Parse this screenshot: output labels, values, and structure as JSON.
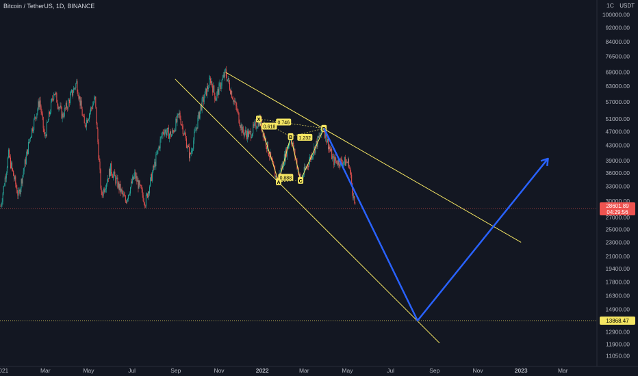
{
  "header": {
    "symbol_line": "Bitcoin / TetherUS, 1D, BINANCE",
    "currency": "USDT",
    "truncated_top": "1C"
  },
  "price_labels": {
    "current_price": "28601.89",
    "countdown": "04:29:56",
    "target_price": "13868.47"
  },
  "colors": {
    "background": "#131722",
    "up": "#26a69a",
    "down": "#ef5350",
    "trendline": "#f5e663",
    "projection": "#2962ff",
    "pattern": "#f5e663",
    "axis_text": "#b2b5be"
  },
  "chart_data": {
    "type": "candlestick",
    "title": "Bitcoin / TetherUS, 1D, BINANCE",
    "y_scale": "log",
    "ylim": [
      10500,
      110000
    ],
    "y_ticks": [
      100000,
      92000,
      84000,
      76500,
      69000,
      63000,
      57000,
      51000,
      47000,
      43000,
      39000,
      36000,
      33000,
      30000,
      27000,
      25000,
      23000,
      21000,
      19400,
      17800,
      16300,
      14900,
      13868.47,
      12900,
      11900,
      11050
    ],
    "x_tick_labels": [
      "021",
      "Mar",
      "May",
      "Jul",
      "Sep",
      "Nov",
      "2022",
      "Mar",
      "May",
      "Jul",
      "Sep",
      "Nov",
      "2023",
      "Mar"
    ],
    "x_tick_dates": [
      "2021-01-01",
      "2021-03-01",
      "2021-05-01",
      "2021-07-01",
      "2021-09-01",
      "2021-11-01",
      "2022-01-01",
      "2022-03-01",
      "2022-05-01",
      "2022-07-01",
      "2022-09-01",
      "2022-11-01",
      "2023-01-01",
      "2023-03-01"
    ],
    "price_path": [
      [
        "2020-12-28",
        29000
      ],
      [
        "2021-01-08",
        40500
      ],
      [
        "2021-01-22",
        31000
      ],
      [
        "2021-02-08",
        46000
      ],
      [
        "2021-02-21",
        57500
      ],
      [
        "2021-02-28",
        45000
      ],
      [
        "2021-03-13",
        61000
      ],
      [
        "2021-03-25",
        52000
      ],
      [
        "2021-04-14",
        64500
      ],
      [
        "2021-04-25",
        49000
      ],
      [
        "2021-05-10",
        58000
      ],
      [
        "2021-05-19",
        31000
      ],
      [
        "2021-06-01",
        37000
      ],
      [
        "2021-06-22",
        30000
      ],
      [
        "2021-07-05",
        35500
      ],
      [
        "2021-07-20",
        29800
      ],
      [
        "2021-08-14",
        47500
      ],
      [
        "2021-08-26",
        46000
      ],
      [
        "2021-09-06",
        52500
      ],
      [
        "2021-09-21",
        40000
      ],
      [
        "2021-10-06",
        55000
      ],
      [
        "2021-10-20",
        66000
      ],
      [
        "2021-10-27",
        58500
      ],
      [
        "2021-11-10",
        69000
      ],
      [
        "2021-11-26",
        54000
      ],
      [
        "2021-12-04",
        47000
      ],
      [
        "2021-12-14",
        46000
      ],
      [
        "2021-12-28",
        50800
      ],
      [
        "2022-01-22",
        34000
      ],
      [
        "2022-02-10",
        45500
      ],
      [
        "2022-02-24",
        34300
      ],
      [
        "2022-03-28",
        48200
      ],
      [
        "2022-04-11",
        39000
      ],
      [
        "2022-05-03",
        38500
      ],
      [
        "2022-05-12",
        28601.89
      ]
    ],
    "current_price": 28601.89,
    "target_line": 13868.47,
    "channel_lines": [
      {
        "from": [
          "2021-11-10",
          69000
        ],
        "to": [
          "2023-01-01",
          23000
        ]
      },
      {
        "from": [
          "2021-08-31",
          66000
        ],
        "to": [
          "2022-09-08",
          12000
        ]
      }
    ],
    "pattern": {
      "points": [
        {
          "label": "X",
          "date": "2021-12-27",
          "price": 51000
        },
        {
          "label": "A",
          "date": "2022-01-24",
          "price": 34000
        },
        {
          "label": "B",
          "date": "2022-02-10",
          "price": 45500
        },
        {
          "label": "C",
          "date": "2022-02-24",
          "price": 34300
        },
        {
          "label": "D",
          "date": "2022-03-29",
          "price": 48000
        }
      ],
      "ratios": [
        {
          "text": "0.618",
          "date": "2022-01-11",
          "price": 48700
        },
        {
          "text": "0.746",
          "date": "2022-01-31",
          "price": 50000
        },
        {
          "text": "1.232",
          "date": "2022-03-02",
          "price": 45300
        },
        {
          "text": "0.888",
          "date": "2022-02-03",
          "price": 35000
        }
      ]
    },
    "projection": [
      {
        "date": "2022-03-29",
        "price": 48000
      },
      {
        "date": "2022-08-08",
        "price": 13868.47
      },
      {
        "date": "2023-02-08",
        "price": 39500
      }
    ]
  }
}
